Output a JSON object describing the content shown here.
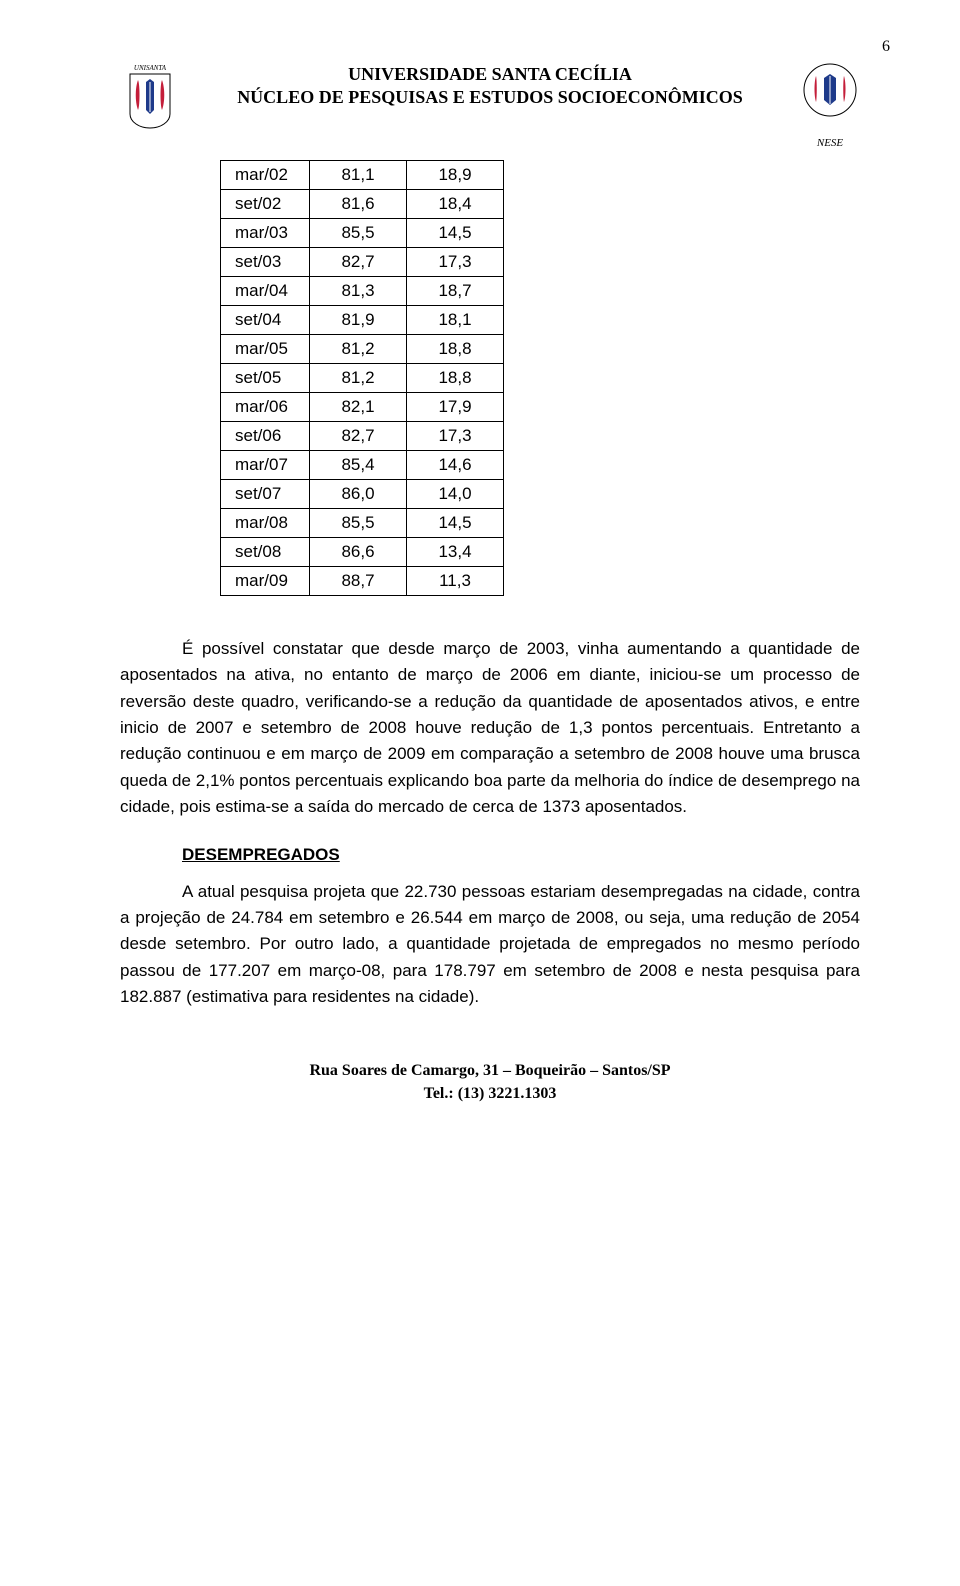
{
  "page_number": "6",
  "header": {
    "line1": "UNIVERSIDADE SANTA CECÍLIA",
    "line2": "NÚCLEO DE PESQUISAS E ESTUDOS SOCIOECONÔMICOS",
    "logo_left_label": "UNISANTA",
    "logo_right_label": "NESE",
    "logo_colors": {
      "red": "#c41e3a",
      "blue": "#1e3a8a",
      "gray": "#808080"
    }
  },
  "table": {
    "rows": [
      [
        "mar/02",
        "81,1",
        "18,9"
      ],
      [
        "set/02",
        "81,6",
        "18,4"
      ],
      [
        "mar/03",
        "85,5",
        "14,5"
      ],
      [
        "set/03",
        "82,7",
        "17,3"
      ],
      [
        "mar/04",
        "81,3",
        "18,7"
      ],
      [
        "set/04",
        "81,9",
        "18,1"
      ],
      [
        "mar/05",
        "81,2",
        "18,8"
      ],
      [
        "set/05",
        "81,2",
        "18,8"
      ],
      [
        "mar/06",
        "82,1",
        "17,9"
      ],
      [
        "set/06",
        "82,7",
        "17,3"
      ],
      [
        "mar/07",
        "85,4",
        "14,6"
      ],
      [
        "set/07",
        "86,0",
        "14,0"
      ],
      [
        "mar/08",
        "85,5",
        "14,5"
      ],
      [
        "set/08",
        "86,6",
        "13,4"
      ],
      [
        "mar/09",
        "88,7",
        "11,3"
      ]
    ],
    "col_align": [
      "left",
      "center",
      "center"
    ],
    "font_size": 17,
    "border_color": "#000000"
  },
  "paragraphs": {
    "p1": "É possível constatar que desde março de 2003, vinha aumentando a quantidade de aposentados na ativa, no entanto de março de 2006 em diante, iniciou-se um processo de reversão deste quadro, verificando-se a redução da quantidade de aposentados ativos, e entre inicio de 2007 e setembro de 2008 houve redução de 1,3 pontos percentuais. Entretanto a redução continuou e em março de 2009 em comparação a setembro de 2008 houve uma brusca queda de 2,1% pontos percentuais explicando boa parte da melhoria do índice de desemprego na cidade, pois estima-se a saída do mercado de cerca de 1373 aposentados.",
    "heading": "DESEMPREGADOS",
    "p2": "A atual pesquisa projeta que 22.730 pessoas estariam desempregadas na cidade, contra a projeção de 24.784 em setembro e 26.544 em março de 2008, ou seja, uma redução de 2054 desde setembro. Por outro lado, a quantidade projetada de empregados no mesmo período passou de 177.207 em março-08, para 178.797 em setembro de 2008 e nesta  pesquisa para 182.887 (estimativa para residentes na cidade)."
  },
  "footer": {
    "line1": "Rua Soares de Camargo, 31 – Boqueirão – Santos/SP",
    "line2": "Tel.: (13) 3221.1303"
  },
  "styles": {
    "body_font_size": 17,
    "body_line_height": 1.55,
    "text_color": "#000000",
    "background_color": "#ffffff",
    "heading_underline": true
  }
}
